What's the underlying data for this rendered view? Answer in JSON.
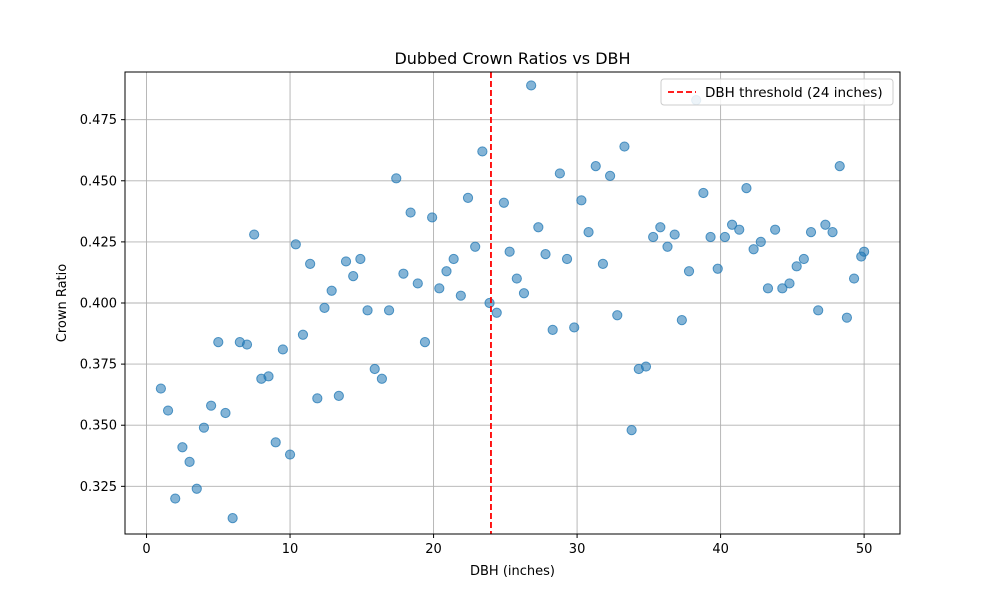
{
  "chart_data": {
    "type": "scatter",
    "title": "Dubbed Crown Ratios vs DBH",
    "xlabel": "DBH (inches)",
    "ylabel": "Crown Ratio",
    "xlim": [
      -1.5,
      52.5
    ],
    "ylim": [
      0.3055,
      0.4945
    ],
    "xticks": [
      0,
      10,
      20,
      30,
      40,
      50
    ],
    "yticks": [
      0.325,
      0.35,
      0.375,
      0.4,
      0.425,
      0.45,
      0.475
    ],
    "ytick_labels": [
      "0.325",
      "0.350",
      "0.375",
      "0.400",
      "0.425",
      "0.450",
      "0.475"
    ],
    "grid": true,
    "legend_position": "top-right",
    "colors": {
      "points": "#1f77b4",
      "threshold": "#ff0000",
      "grid": "#b0b0b0"
    },
    "threshold": {
      "x": 24,
      "label": "DBH threshold (24 inches)",
      "style": "dashed"
    },
    "series": [
      {
        "x": [
          1.0,
          1.5,
          2.0,
          2.5,
          3.0,
          3.5,
          4.0,
          4.5,
          5.0,
          5.5,
          6.0,
          6.5,
          7.0,
          7.5,
          8.0,
          8.5,
          9.0,
          9.5,
          10.0,
          10.4,
          10.9,
          11.4,
          11.9,
          12.4,
          12.9,
          13.4,
          13.9,
          14.4,
          14.9,
          15.4,
          15.9,
          16.4,
          16.9,
          17.4,
          17.9,
          18.4,
          18.9,
          19.4,
          19.9,
          20.4,
          20.9,
          21.4,
          21.9,
          22.4,
          22.9,
          23.4,
          23.9,
          24.4,
          24.9,
          25.3,
          25.8,
          26.3,
          26.8,
          27.3,
          27.8,
          28.3,
          28.8,
          29.3,
          29.8,
          30.3,
          30.8,
          31.3,
          31.8,
          32.3,
          32.8,
          33.3,
          33.8,
          34.3,
          34.8,
          35.3,
          35.8,
          36.3,
          36.8,
          37.3,
          37.8,
          38.3,
          38.8,
          39.3,
          39.8,
          40.3,
          40.8,
          41.3,
          41.8,
          42.3,
          42.8,
          43.3,
          43.8,
          44.3,
          44.8,
          45.3,
          45.8,
          46.3,
          46.8,
          47.3,
          47.8,
          48.3,
          48.8,
          49.3,
          49.8,
          50.0
        ],
        "y": [
          0.365,
          0.356,
          0.32,
          0.341,
          0.335,
          0.324,
          0.349,
          0.358,
          0.384,
          0.355,
          0.312,
          0.384,
          0.383,
          0.428,
          0.369,
          0.37,
          0.343,
          0.381,
          0.338,
          0.424,
          0.387,
          0.416,
          0.361,
          0.398,
          0.405,
          0.362,
          0.417,
          0.411,
          0.418,
          0.397,
          0.373,
          0.369,
          0.397,
          0.451,
          0.412,
          0.437,
          0.408,
          0.384,
          0.435,
          0.406,
          0.413,
          0.418,
          0.403,
          0.443,
          0.423,
          0.462,
          0.4,
          0.396,
          0.441,
          0.421,
          0.41,
          0.404,
          0.489,
          0.431,
          0.42,
          0.389,
          0.453,
          0.418,
          0.39,
          0.442,
          0.429,
          0.456,
          0.416,
          0.452,
          0.395,
          0.464,
          0.348,
          0.373,
          0.374,
          0.427,
          0.431,
          0.423,
          0.428,
          0.393,
          0.413,
          0.483,
          0.445,
          0.427,
          0.414,
          0.427,
          0.432,
          0.43,
          0.447,
          0.422,
          0.425,
          0.406,
          0.43,
          0.406,
          0.408,
          0.415,
          0.418,
          0.429,
          0.397,
          0.432,
          0.429,
          0.456,
          0.394,
          0.41,
          0.419,
          0.421
        ]
      }
    ]
  }
}
